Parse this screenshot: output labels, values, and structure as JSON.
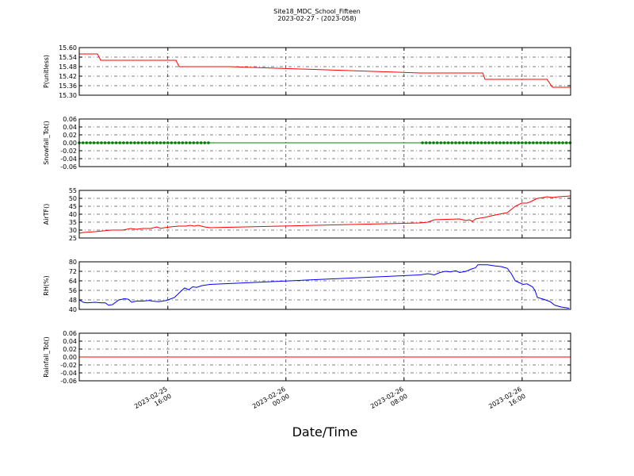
{
  "title": "Site18_MDC_School_Fifteen",
  "subtitle": "2023-02-27 - (2023-058)",
  "xlabel": "Date/Time",
  "xlim": [
    "2023-02-25 10:00",
    "2023-02-26 19:17"
  ],
  "xticks": [
    {
      "value": "2023-02-25 16:00",
      "label": [
        "2023-02-25",
        "16:00"
      ]
    },
    {
      "value": "2023-02-26 00:00",
      "label": [
        "2023-02-26",
        "00:00"
      ]
    },
    {
      "value": "2023-02-26 08:00",
      "label": [
        "2023-02-26",
        "08:00"
      ]
    },
    {
      "value": "2023-02-26 16:00",
      "label": [
        "2023-02-26",
        "16:00"
      ]
    }
  ],
  "chart_data": [
    {
      "type": "line",
      "ylabel": "P(unitless)",
      "color": "#ff0000",
      "grid": true,
      "ylim": [
        15.3,
        15.6
      ],
      "yticks": [
        {
          "value": 15.3,
          "label": "15.30"
        },
        15.36,
        15.42,
        15.48,
        15.54,
        {
          "value": 15.6,
          "label": "15.60"
        }
      ],
      "x": [
        "2023-02-25 10:00",
        "2023-02-25 11:14",
        "2023-02-25 11:27",
        "2023-02-25 16:33",
        "2023-02-25 16:46",
        "2023-02-25 20:12",
        "2023-02-26 09:05",
        "2023-02-26 13:20",
        "2023-02-26 13:29",
        "2023-02-26 17:41",
        "2023-02-26 18:03",
        "2023-02-26 19:17"
      ],
      "values": [
        15.56,
        15.56,
        15.52,
        15.52,
        15.48,
        15.48,
        15.44,
        15.44,
        15.4,
        15.4,
        15.35,
        15.35
      ]
    },
    {
      "type": "line",
      "ylabel": "Snowfall_Tot()",
      "color": "#008000",
      "markers": true,
      "grid": true,
      "ylim": [
        -0.06,
        0.06
      ],
      "yticks": [
        -0.06,
        -0.04,
        -0.02,
        {
          "value": 0,
          "label": "0.00"
        },
        0.02,
        0.04,
        0.06
      ],
      "x": [
        "2023-02-25 10:00",
        "2023-02-25 10:15",
        "2023-02-25 10:30",
        "2023-02-25 10:45",
        "2023-02-25 11:00",
        "2023-02-25 11:15",
        "2023-02-25 11:30",
        "2023-02-25 11:45",
        "2023-02-25 12:00",
        "2023-02-25 12:15",
        "2023-02-25 12:30",
        "2023-02-25 12:45",
        "2023-02-25 13:00",
        "2023-02-25 13:15",
        "2023-02-25 13:30",
        "2023-02-25 13:45",
        "2023-02-25 14:00",
        "2023-02-25 14:15",
        "2023-02-25 14:30",
        "2023-02-25 14:45",
        "2023-02-25 15:00",
        "2023-02-25 15:15",
        "2023-02-25 15:30",
        "2023-02-25 15:45",
        "2023-02-25 16:00",
        "2023-02-25 16:15",
        "2023-02-25 16:30",
        "2023-02-25 16:45",
        "2023-02-25 17:00",
        "2023-02-25 17:15",
        "2023-02-25 17:30",
        "2023-02-25 17:45",
        "2023-02-25 18:00",
        "2023-02-25 18:15",
        "2023-02-25 18:30",
        "2023-02-25 18:45",
        "2023-02-26 09:15",
        "2023-02-26 09:30",
        "2023-02-26 09:45",
        "2023-02-26 10:00",
        "2023-02-26 10:15",
        "2023-02-26 10:30",
        "2023-02-26 10:45",
        "2023-02-26 11:00",
        "2023-02-26 11:15",
        "2023-02-26 11:30",
        "2023-02-26 11:45",
        "2023-02-26 12:00",
        "2023-02-26 12:15",
        "2023-02-26 12:30",
        "2023-02-26 12:45",
        "2023-02-26 13:00",
        "2023-02-26 13:15",
        "2023-02-26 13:30",
        "2023-02-26 13:45",
        "2023-02-26 14:00",
        "2023-02-26 14:15",
        "2023-02-26 14:30",
        "2023-02-26 14:45",
        "2023-02-26 15:00",
        "2023-02-26 15:15",
        "2023-02-26 15:30",
        "2023-02-26 15:45",
        "2023-02-26 16:00",
        "2023-02-26 16:15",
        "2023-02-26 16:30",
        "2023-02-26 16:45",
        "2023-02-26 17:00",
        "2023-02-26 17:15",
        "2023-02-26 17:30",
        "2023-02-26 17:45",
        "2023-02-26 18:00",
        "2023-02-26 18:15",
        "2023-02-26 18:30",
        "2023-02-26 18:45",
        "2023-02-26 19:00",
        "2023-02-26 19:15"
      ],
      "values": [
        0,
        0,
        0,
        0,
        0,
        0,
        0,
        0,
        0,
        0,
        0,
        0,
        0,
        0,
        0,
        0,
        0,
        0,
        0,
        0,
        0,
        0,
        0,
        0,
        0,
        0,
        0,
        0,
        0,
        0,
        0,
        0,
        0,
        0,
        0,
        0,
        0,
        0,
        0,
        0,
        0,
        0,
        0,
        0,
        0,
        0,
        0,
        0,
        0,
        0,
        0,
        0,
        0,
        0,
        0,
        0,
        0,
        0,
        0,
        0,
        0,
        0,
        0,
        0,
        0,
        0,
        0,
        0,
        0,
        0,
        0,
        0,
        0,
        0,
        0,
        0,
        0
      ]
    },
    {
      "type": "line",
      "ylabel": "AirTF()",
      "color": "#ff0000",
      "grid": true,
      "ylim": [
        25,
        55
      ],
      "yticks": [
        25,
        30,
        35,
        40,
        45,
        50,
        55
      ],
      "x": [
        "2023-02-25 10:00",
        "2023-02-25 10:16",
        "2023-02-25 11:04",
        "2023-02-25 11:37",
        "2023-02-25 12:09",
        "2023-02-25 12:57",
        "2023-02-25 13:13",
        "2023-02-25 13:29",
        "2023-02-25 13:52",
        "2023-02-25 14:18",
        "2023-02-25 14:50",
        "2023-02-25 15:16",
        "2023-02-25 15:32",
        "2023-02-25 15:45",
        "2023-02-25 16:10",
        "2023-02-25 16:43",
        "2023-02-25 17:15",
        "2023-02-25 17:31",
        "2023-02-25 17:47",
        "2023-02-25 18:03",
        "2023-02-25 18:29",
        "2023-02-25 18:52",
        "2023-02-26 09:05",
        "2023-02-26 09:37",
        "2023-02-26 10:03",
        "2023-02-26 11:46",
        "2023-02-26 12:12",
        "2023-02-26 12:25",
        "2023-02-26 12:38",
        "2023-02-26 12:51",
        "2023-02-26 13:07",
        "2023-02-26 13:29",
        "2023-02-26 13:55",
        "2023-02-26 14:27",
        "2023-02-26 15:00",
        "2023-02-26 15:16",
        "2023-02-26 15:32",
        "2023-02-26 15:58",
        "2023-02-26 16:20",
        "2023-02-26 16:36",
        "2023-02-26 17:02",
        "2023-02-26 17:25",
        "2023-02-26 17:41",
        "2023-02-26 18:03",
        "2023-02-26 18:29",
        "2023-02-26 19:17"
      ],
      "values": [
        28,
        28.5,
        29,
        29.5,
        30,
        30,
        30.5,
        31,
        30.5,
        31,
        31,
        32,
        31,
        31.5,
        32,
        32.5,
        32.5,
        33,
        32.5,
        33,
        32,
        31.5,
        34.5,
        35,
        36.5,
        37,
        36,
        36.5,
        35.5,
        37,
        37.5,
        38,
        39,
        40,
        41,
        43,
        45,
        47,
        47,
        48,
        50,
        50.5,
        51,
        50.5,
        51,
        51.5
      ]
    },
    {
      "type": "line",
      "ylabel": "RH(%)",
      "color": "#0000ff",
      "grid": true,
      "ylim": [
        40,
        80
      ],
      "yticks": [
        40,
        48,
        56,
        64,
        72,
        80
      ],
      "x": [
        "2023-02-25 10:00",
        "2023-02-25 10:16",
        "2023-02-25 10:32",
        "2023-02-25 11:04",
        "2023-02-25 11:30",
        "2023-02-25 11:46",
        "2023-02-25 11:59",
        "2023-02-25 12:15",
        "2023-02-25 12:41",
        "2023-02-25 13:04",
        "2023-02-25 13:20",
        "2023-02-25 13:33",
        "2023-02-25 13:52",
        "2023-02-25 14:18",
        "2023-02-25 14:43",
        "2023-02-25 14:56",
        "2023-02-25 15:22",
        "2023-02-25 15:54",
        "2023-02-25 16:27",
        "2023-02-25 16:52",
        "2023-02-25 17:08",
        "2023-02-25 17:25",
        "2023-02-25 17:41",
        "2023-02-25 17:57",
        "2023-02-25 18:19",
        "2023-02-25 18:52",
        "2023-02-26 09:05",
        "2023-02-26 09:37",
        "2023-02-26 10:03",
        "2023-02-26 10:26",
        "2023-02-26 10:48",
        "2023-02-26 11:08",
        "2023-02-26 11:30",
        "2023-02-26 11:46",
        "2023-02-26 12:12",
        "2023-02-26 12:35",
        "2023-02-26 12:51",
        "2023-02-26 13:00",
        "2023-02-26 13:39",
        "2023-02-26 14:11",
        "2023-02-26 14:34",
        "2023-02-26 15:00",
        "2023-02-26 15:16",
        "2023-02-26 15:32",
        "2023-02-26 15:48",
        "2023-02-26 16:04",
        "2023-02-26 16:20",
        "2023-02-26 16:42",
        "2023-02-26 16:52",
        "2023-02-26 17:02",
        "2023-02-26 17:28",
        "2023-02-26 17:54",
        "2023-02-26 18:13",
        "2023-02-26 18:39",
        "2023-02-26 19:11"
      ],
      "values": [
        48,
        46,
        45.5,
        46,
        45.5,
        45.5,
        43.5,
        44,
        48,
        49,
        48.5,
        46,
        47,
        47,
        47.5,
        47,
        46.5,
        47.5,
        50,
        55,
        58,
        56.5,
        59,
        58.5,
        60,
        61,
        69,
        70,
        69,
        71,
        72,
        71.5,
        72.5,
        71,
        72,
        74,
        75,
        77.5,
        77.5,
        76.5,
        76,
        74.5,
        70,
        64,
        62.5,
        61,
        61.5,
        59,
        56,
        50,
        48.5,
        46.5,
        43.5,
        42,
        41
      ]
    },
    {
      "type": "line",
      "ylabel": "Rainfall_Tot()",
      "color": "#ff0000",
      "grid": true,
      "ylim": [
        -0.06,
        0.06
      ],
      "yticks": [
        -0.06,
        -0.04,
        -0.02,
        {
          "value": 0,
          "label": "0.00"
        },
        0.02,
        0.04,
        0.06
      ],
      "x": [
        "2023-02-25 10:00",
        "2023-02-26 19:17"
      ],
      "values": [
        0,
        0
      ]
    }
  ]
}
